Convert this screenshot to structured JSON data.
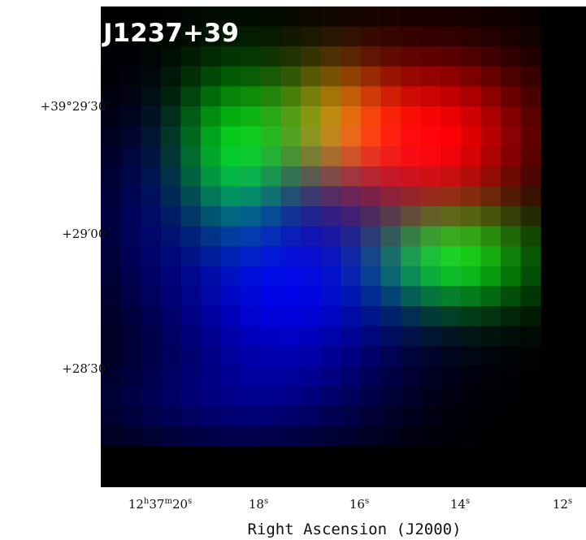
{
  "title": "J1237+39",
  "y_axis": {
    "ticks": [
      "+39°29′30″",
      "+29′00″",
      "+28′30″"
    ]
  },
  "x_axis": {
    "label": "Right Ascension (J2000)",
    "ticks": [
      "12h37m20s",
      "18s",
      "16s",
      "14s",
      "12s"
    ]
  }
}
